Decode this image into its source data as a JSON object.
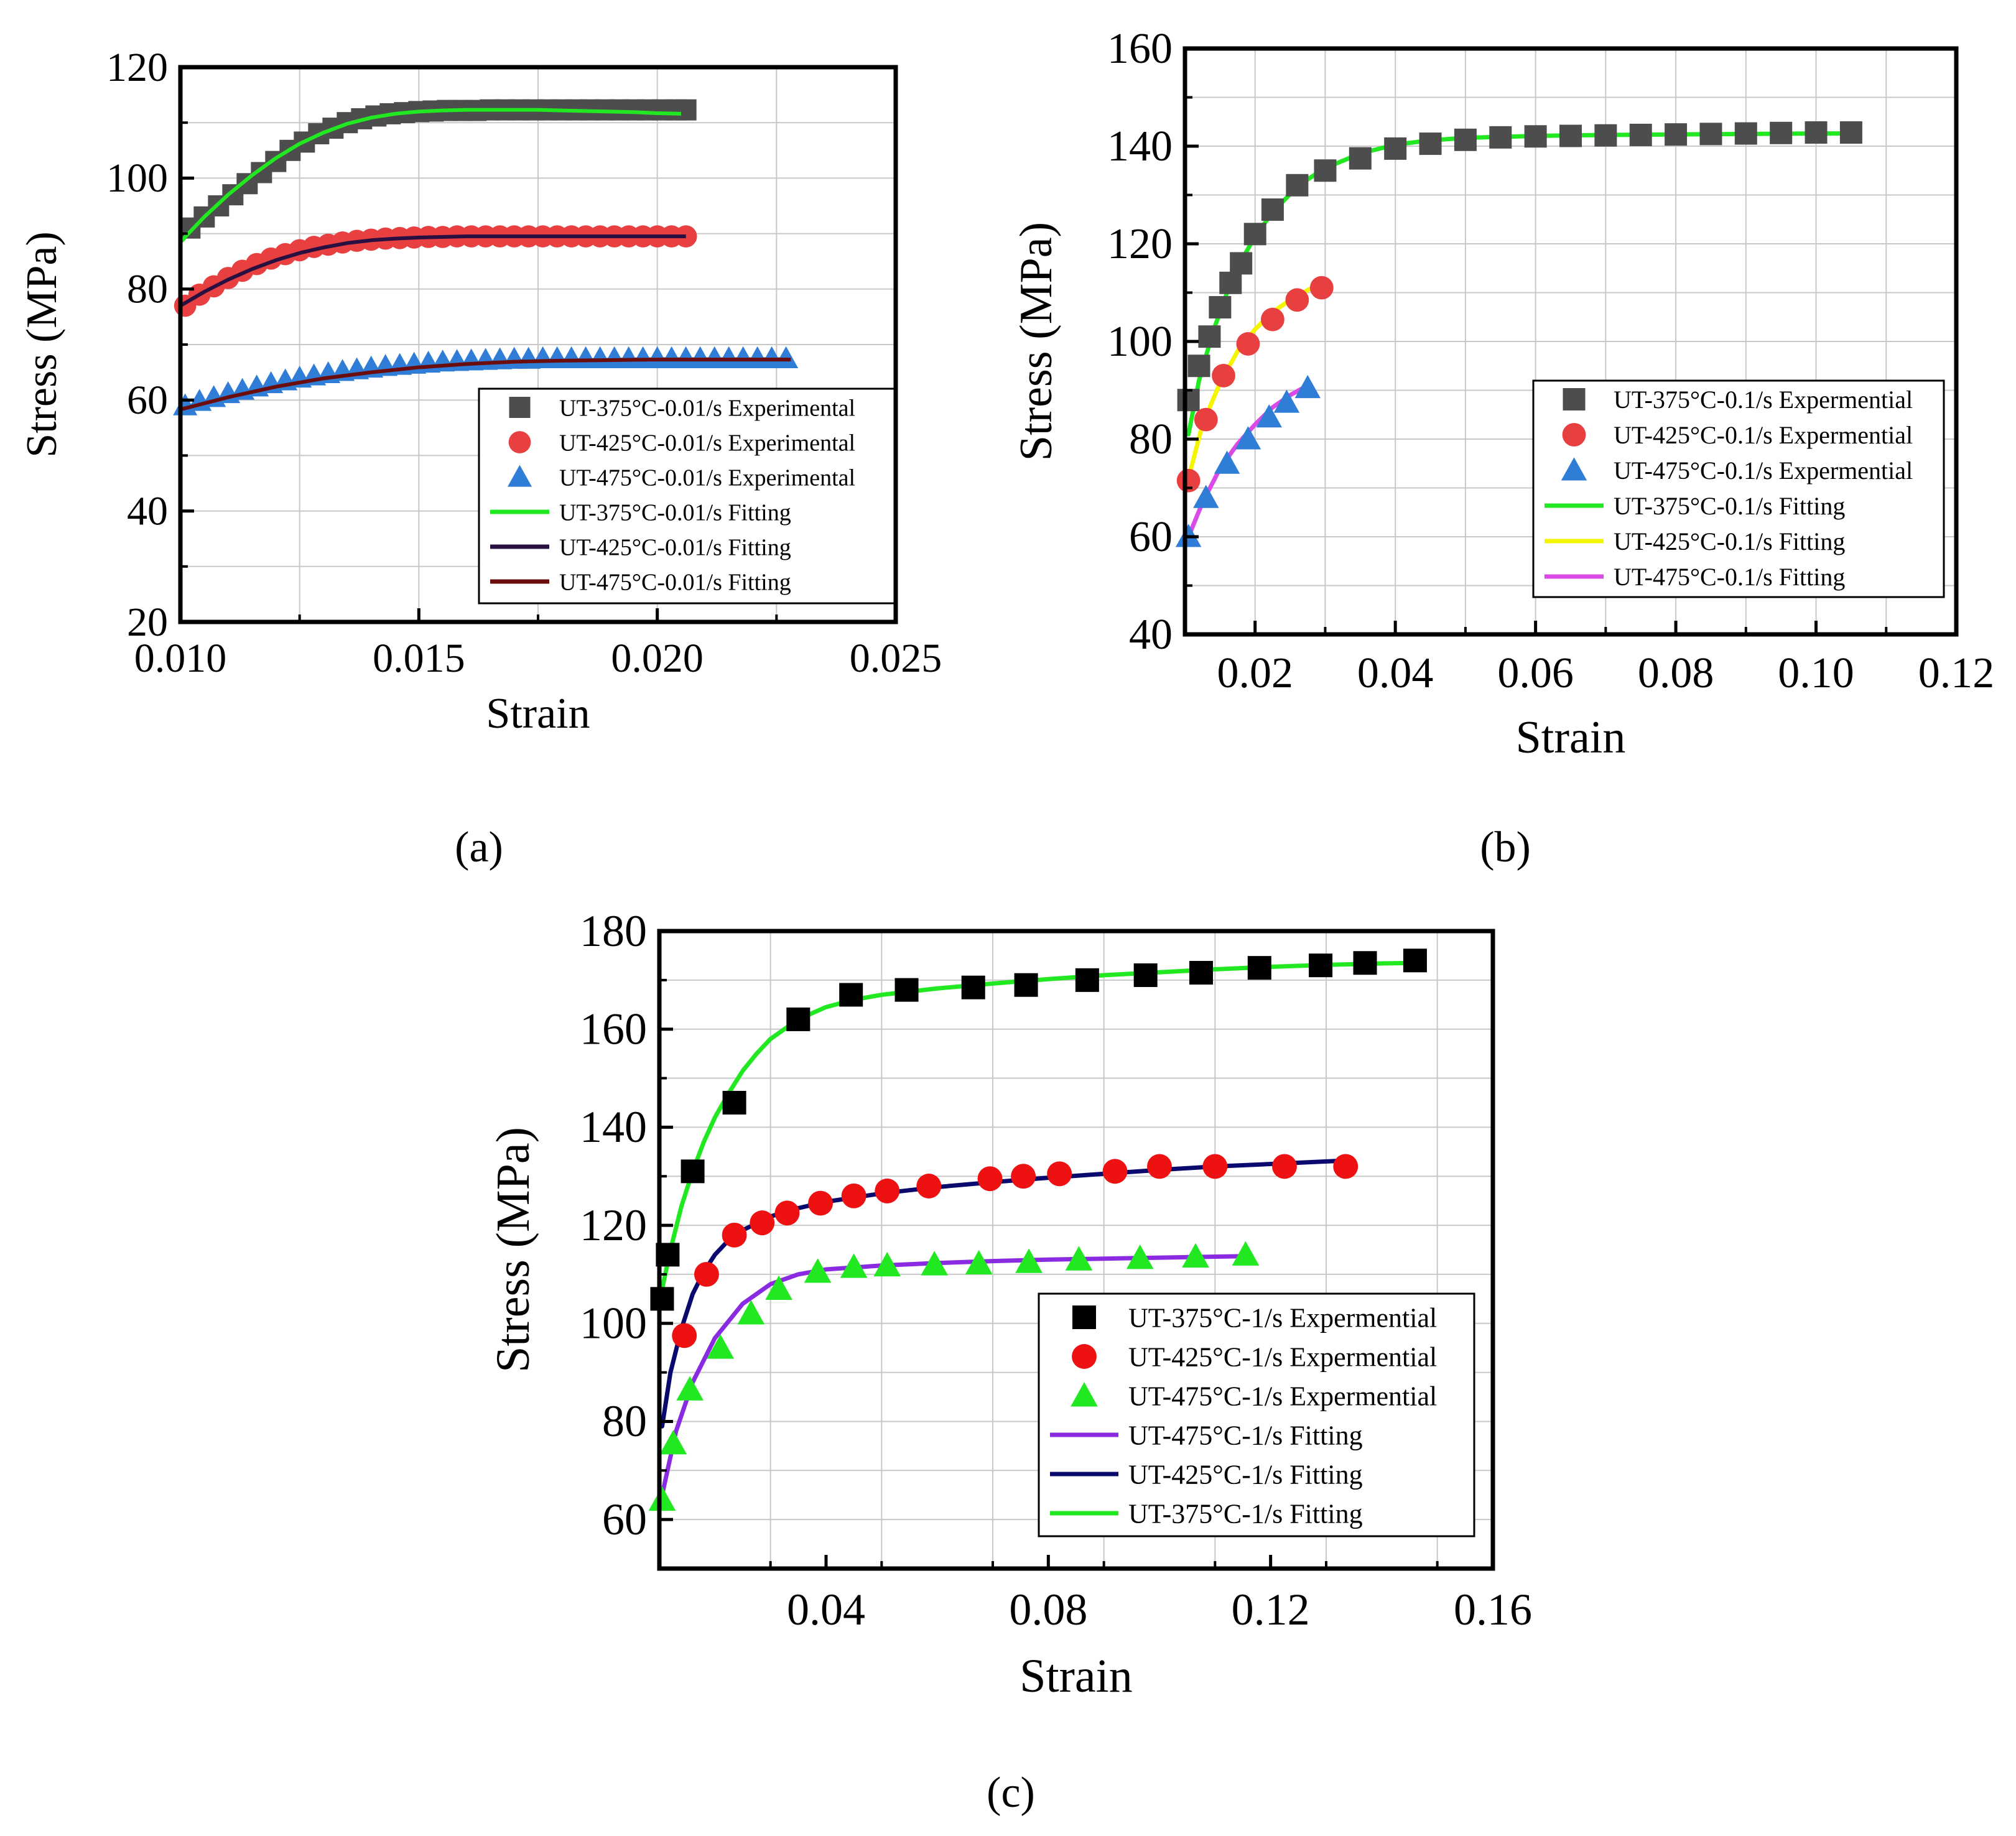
{
  "panel_labels": [
    "(a)",
    "(b)",
    "(c)"
  ],
  "colors": {
    "exp_375": "#4d4d4d",
    "exp_425": "#e84040",
    "exp_475": "#2f7dd6",
    "exp_375_c": "#000000",
    "exp_425_c": "#ee1111",
    "exp_475_c": "#22e822",
    "fit_green": "#22e822",
    "fit_dark_purple": "#2a1040",
    "fit_dark_red": "#6b0d0d",
    "fit_yellow": "#f5f500",
    "fit_magenta": "#d94ae6",
    "fit_violet": "#8a2be2",
    "fit_navy": "#0a0a6e",
    "grid": "#c8c8c8"
  },
  "chart_data": [
    {
      "panel": "(a)",
      "type": "line",
      "xlabel": "Strain",
      "ylabel": "Stress (MPa)",
      "xlim": [
        0.01,
        0.025
      ],
      "ylim": [
        20,
        120
      ],
      "xticks": [
        "0.010",
        "0.015",
        "0.020",
        "0.025"
      ],
      "yticks": [
        "20",
        "40",
        "60",
        "80",
        "100",
        "120"
      ],
      "grid": true,
      "legend_position": "lower-right",
      "series": [
        {
          "name": "UT-375°C-0.01/s Experimental",
          "kind": "scatter",
          "marker": "square",
          "color_key": "exp_375",
          "x": [
            0.0102,
            0.0105,
            0.0108,
            0.0111,
            0.0114,
            0.0117,
            0.012,
            0.0123,
            0.0126,
            0.0129,
            0.0132,
            0.0135,
            0.0138,
            0.0141,
            0.0144,
            0.0147,
            0.015,
            0.0153,
            0.0156,
            0.0159,
            0.0162,
            0.0165,
            0.0168,
            0.0171,
            0.0174,
            0.0177,
            0.018,
            0.0183,
            0.0186,
            0.0189,
            0.0192,
            0.0195,
            0.0198,
            0.0201,
            0.0204,
            0.0206
          ],
          "y": [
            91,
            93,
            95,
            97,
            99,
            101,
            103,
            105,
            106.5,
            108,
            109,
            110,
            110.7,
            111.2,
            111.6,
            111.8,
            112,
            112.1,
            112.2,
            112.2,
            112.2,
            112.3,
            112.3,
            112.3,
            112.3,
            112.3,
            112.3,
            112.3,
            112.3,
            112.3,
            112.3,
            112.3,
            112.3,
            112.3,
            112.3,
            112.3
          ]
        },
        {
          "name": "UT-425°C-0.01/s Experimental",
          "kind": "scatter",
          "marker": "circle",
          "color_key": "exp_425",
          "x": [
            0.0101,
            0.0104,
            0.0107,
            0.011,
            0.0113,
            0.0116,
            0.0119,
            0.0122,
            0.0125,
            0.0128,
            0.0131,
            0.0134,
            0.0137,
            0.014,
            0.0143,
            0.0146,
            0.0149,
            0.0152,
            0.0155,
            0.0158,
            0.0161,
            0.0164,
            0.0167,
            0.017,
            0.0173,
            0.0176,
            0.0179,
            0.0182,
            0.0185,
            0.0188,
            0.0191,
            0.0194,
            0.0197,
            0.02,
            0.0203,
            0.0206
          ],
          "y": [
            77,
            79,
            80.5,
            82,
            83.3,
            84.5,
            85.5,
            86.3,
            87,
            87.6,
            88,
            88.4,
            88.7,
            88.9,
            89.1,
            89.2,
            89.3,
            89.4,
            89.4,
            89.5,
            89.5,
            89.5,
            89.5,
            89.5,
            89.5,
            89.5,
            89.5,
            89.5,
            89.5,
            89.5,
            89.5,
            89.5,
            89.5,
            89.5,
            89.5,
            89.5
          ]
        },
        {
          "name": "UT-475°C-0.01/s Experimental",
          "kind": "scatter",
          "marker": "triangle",
          "color_key": "exp_475",
          "x": [
            0.0101,
            0.0104,
            0.0107,
            0.011,
            0.0113,
            0.0116,
            0.0119,
            0.0122,
            0.0125,
            0.0128,
            0.0131,
            0.0134,
            0.0137,
            0.014,
            0.0143,
            0.0146,
            0.0149,
            0.0152,
            0.0155,
            0.0158,
            0.0161,
            0.0164,
            0.0167,
            0.017,
            0.0173,
            0.0176,
            0.0179,
            0.0182,
            0.0185,
            0.0188,
            0.0191,
            0.0194,
            0.0197,
            0.02,
            0.0203,
            0.0206,
            0.0209,
            0.0212,
            0.0215,
            0.0218,
            0.0221,
            0.0224,
            0.0227
          ],
          "y": [
            59,
            59.8,
            60.5,
            61.2,
            61.8,
            62.4,
            63,
            63.5,
            64,
            64.4,
            64.8,
            65.2,
            65.5,
            65.8,
            66.1,
            66.3,
            66.5,
            66.7,
            66.9,
            67,
            67.1,
            67.2,
            67.3,
            67.4,
            67.4,
            67.5,
            67.5,
            67.5,
            67.5,
            67.5,
            67.5,
            67.5,
            67.5,
            67.5,
            67.5,
            67.5,
            67.5,
            67.5,
            67.5,
            67.5,
            67.5,
            67.5,
            67.5
          ]
        },
        {
          "name": "UT-375°C-0.01/s Fitting",
          "kind": "line",
          "color_key": "fit_green",
          "x": [
            0.01,
            0.0105,
            0.011,
            0.0115,
            0.012,
            0.0125,
            0.013,
            0.0135,
            0.014,
            0.0145,
            0.015,
            0.0155,
            0.016,
            0.0165,
            0.017,
            0.0175,
            0.018,
            0.0185,
            0.019,
            0.0195,
            0.02,
            0.0205
          ],
          "y": [
            88.5,
            93,
            97,
            100.5,
            103.6,
            106.2,
            108.2,
            109.8,
            110.9,
            111.6,
            112,
            112.2,
            112.3,
            112.3,
            112.3,
            112.3,
            112.2,
            112.1,
            112,
            111.9,
            111.7,
            111.6
          ]
        },
        {
          "name": "UT-425°C-0.01/s Fitting",
          "kind": "line",
          "color_key": "fit_dark_purple",
          "x": [
            0.01,
            0.0105,
            0.011,
            0.0115,
            0.012,
            0.0125,
            0.013,
            0.0135,
            0.014,
            0.0145,
            0.015,
            0.016,
            0.017,
            0.018,
            0.019,
            0.02,
            0.0206
          ],
          "y": [
            77,
            79.5,
            81.7,
            83.6,
            85.2,
            86.5,
            87.5,
            88.3,
            88.8,
            89.1,
            89.3,
            89.5,
            89.5,
            89.5,
            89.5,
            89.5,
            89.5
          ]
        },
        {
          "name": "UT-475°C-0.01/s Fitting",
          "kind": "line",
          "color_key": "fit_dark_red",
          "x": [
            0.01,
            0.011,
            0.012,
            0.013,
            0.014,
            0.015,
            0.016,
            0.017,
            0.018,
            0.019,
            0.02,
            0.021,
            0.022,
            0.0228
          ],
          "y": [
            58.3,
            60.5,
            62.4,
            63.9,
            65,
            65.9,
            66.5,
            66.9,
            67.1,
            67.2,
            67.3,
            67.3,
            67.3,
            67.3
          ]
        }
      ]
    },
    {
      "panel": "(b)",
      "type": "line",
      "xlabel": "Strain",
      "ylabel": "Stress (MPa)",
      "xlim": [
        0.01,
        0.12
      ],
      "ylim": [
        40,
        160
      ],
      "xticks": [
        "0.02",
        "0.04",
        "0.06",
        "0.08",
        "0.10",
        "0.12"
      ],
      "yticks": [
        "40",
        "60",
        "80",
        "100",
        "120",
        "140",
        "160"
      ],
      "grid": true,
      "legend_position": "lower-right",
      "series": [
        {
          "name": "UT-375°C-0.1/s Expermential",
          "kind": "scatter",
          "marker": "square",
          "color_key": "exp_375",
          "x": [
            0.0105,
            0.012,
            0.0135,
            0.015,
            0.0165,
            0.018,
            0.02,
            0.0225,
            0.026,
            0.03,
            0.035,
            0.04,
            0.045,
            0.05,
            0.055,
            0.06,
            0.065,
            0.07,
            0.075,
            0.08,
            0.085,
            0.09,
            0.095,
            0.1,
            0.105
          ],
          "y": [
            88,
            95,
            101,
            107,
            112,
            116,
            122,
            127,
            132,
            135,
            137.5,
            139.5,
            140.5,
            141.3,
            141.8,
            142,
            142.1,
            142.2,
            142.3,
            142.4,
            142.5,
            142.6,
            142.7,
            142.8,
            142.8
          ]
        },
        {
          "name": "UT-425°C-0.1/s Expermential",
          "kind": "scatter",
          "marker": "circle",
          "color_key": "exp_425",
          "x": [
            0.0105,
            0.013,
            0.0155,
            0.019,
            0.0225,
            0.026,
            0.0295
          ],
          "y": [
            71.5,
            84,
            93,
            99.5,
            104.5,
            108.5,
            111
          ]
        },
        {
          "name": "UT-475°C-0.1/s Expermential",
          "kind": "scatter",
          "marker": "triangle",
          "color_key": "exp_475",
          "x": [
            0.0105,
            0.013,
            0.016,
            0.019,
            0.022,
            0.0245,
            0.0275
          ],
          "y": [
            60,
            68,
            75,
            80,
            84.5,
            87.5,
            90.5
          ]
        },
        {
          "name": "UT-375°C-0.1/s Fitting",
          "kind": "line",
          "color_key": "fit_green",
          "x": [
            0.0105,
            0.012,
            0.014,
            0.016,
            0.018,
            0.02,
            0.0225,
            0.025,
            0.0275,
            0.03,
            0.035,
            0.04,
            0.045,
            0.05,
            0.06,
            0.07,
            0.08,
            0.09,
            0.1,
            0.105
          ],
          "y": [
            81,
            92,
            102,
            110,
            116.5,
            121.5,
            126.5,
            130.2,
            133.2,
            135.5,
            138.5,
            140.3,
            141.2,
            141.7,
            142.1,
            142.3,
            142.4,
            142.5,
            142.6,
            142.6
          ]
        },
        {
          "name": "UT-425°C-0.1/s Fitting",
          "kind": "line",
          "color_key": "fit_yellow",
          "x": [
            0.0105,
            0.0125,
            0.015,
            0.0175,
            0.02,
            0.0225,
            0.025,
            0.0275,
            0.0295
          ],
          "y": [
            72,
            83,
            91.5,
            98,
            102.5,
            106,
            108.5,
            110.5,
            112
          ]
        },
        {
          "name": "UT-475°C-0.1/s Fitting",
          "kind": "line",
          "color_key": "fit_magenta",
          "x": [
            0.0105,
            0.0125,
            0.015,
            0.0175,
            0.02,
            0.0225,
            0.025,
            0.0275
          ],
          "y": [
            60,
            67,
            74,
            79,
            83,
            86.5,
            89,
            91
          ]
        }
      ]
    },
    {
      "panel": "(c)",
      "type": "line",
      "xlabel": "Strain",
      "ylabel": "Stress (MPa)",
      "xlim": [
        0.01,
        0.16
      ],
      "ylim": [
        50,
        180
      ],
      "xticks": [
        "0.04",
        "0.08",
        "0.12",
        "0.16"
      ],
      "yticks": [
        "60",
        "80",
        "100",
        "120",
        "140",
        "160",
        "180"
      ],
      "grid": true,
      "legend_position": "lower-right",
      "series": [
        {
          "name": "UT-375°C-1/s Expermential",
          "kind": "scatter",
          "marker": "square",
          "color_key": "exp_375_c",
          "x": [
            0.0105,
            0.0115,
            0.016,
            0.0235,
            0.035,
            0.0445,
            0.0545,
            0.0665,
            0.076,
            0.087,
            0.0975,
            0.1075,
            0.118,
            0.129,
            0.137,
            0.146
          ],
          "y": [
            105,
            114,
            131,
            145,
            162,
            167,
            168,
            168.5,
            169,
            170,
            171,
            171.5,
            172.5,
            173,
            173.5,
            174
          ]
        },
        {
          "name": "UT-425°C-1/s Expermential",
          "kind": "scatter",
          "marker": "circle",
          "color_key": "exp_425_c",
          "x": [
            0.0145,
            0.0185,
            0.0235,
            0.0285,
            0.033,
            0.039,
            0.045,
            0.051,
            0.0585,
            0.0695,
            0.0755,
            0.082,
            0.092,
            0.1,
            0.11,
            0.1225,
            0.1335
          ],
          "y": [
            97.5,
            110,
            118,
            120.5,
            122.5,
            124.5,
            126,
            127,
            128,
            129.5,
            130,
            130.5,
            131,
            132,
            132,
            132,
            132
          ]
        },
        {
          "name": "UT-475°C-1/s Expermential",
          "kind": "scatter",
          "marker": "triangle",
          "color_key": "exp_475_c",
          "x": [
            0.0105,
            0.0125,
            0.0155,
            0.021,
            0.0265,
            0.0315,
            0.0385,
            0.045,
            0.051,
            0.0595,
            0.0675,
            0.0765,
            0.0855,
            0.0965,
            0.1065,
            0.1155
          ],
          "y": [
            64,
            75.5,
            86.5,
            95,
            102,
            107,
            110.5,
            111.5,
            111.8,
            112,
            112.2,
            112.5,
            113,
            113.3,
            113.6,
            114
          ]
        },
        {
          "name": "UT-475°C-1/s Fitting",
          "kind": "line",
          "color_key": "fit_violet",
          "x": [
            0.0105,
            0.013,
            0.016,
            0.02,
            0.025,
            0.03,
            0.035,
            0.04,
            0.05,
            0.06,
            0.07,
            0.08,
            0.09,
            0.1,
            0.11,
            0.1155
          ],
          "y": [
            65,
            78,
            88,
            97,
            104,
            108,
            110,
            111,
            111.8,
            112.3,
            112.7,
            113,
            113.2,
            113.4,
            113.6,
            113.7
          ]
        },
        {
          "name": "UT-425°C-1/s Fitting",
          "kind": "line",
          "color_key": "fit_navy",
          "x": [
            0.0105,
            0.012,
            0.014,
            0.016,
            0.018,
            0.02,
            0.0225,
            0.025,
            0.03,
            0.035,
            0.04,
            0.05,
            0.06,
            0.07,
            0.08,
            0.09,
            0.1,
            0.11,
            0.12,
            0.1335
          ],
          "y": [
            79,
            90,
            99,
            106,
            110.5,
            114,
            117,
            119,
            121.8,
            123.5,
            124.8,
            126.5,
            127.8,
            128.8,
            129.7,
            130.5,
            131.3,
            132,
            132.5,
            133.2
          ]
        },
        {
          "name": "UT-375°C-1/s Fitting",
          "kind": "line",
          "color_key": "fit_green",
          "x": [
            0.0105,
            0.012,
            0.014,
            0.016,
            0.018,
            0.02,
            0.0225,
            0.025,
            0.0275,
            0.03,
            0.035,
            0.04,
            0.045,
            0.05,
            0.06,
            0.07,
            0.08,
            0.09,
            0.1,
            0.11,
            0.12,
            0.13,
            0.14,
            0.146
          ],
          "y": [
            107,
            115,
            124,
            131,
            137,
            142,
            147,
            151.5,
            155,
            158,
            162,
            164.5,
            166,
            167,
            168.3,
            169.3,
            170.2,
            171,
            171.6,
            172.2,
            172.7,
            173.1,
            173.4,
            173.5
          ]
        }
      ]
    }
  ]
}
